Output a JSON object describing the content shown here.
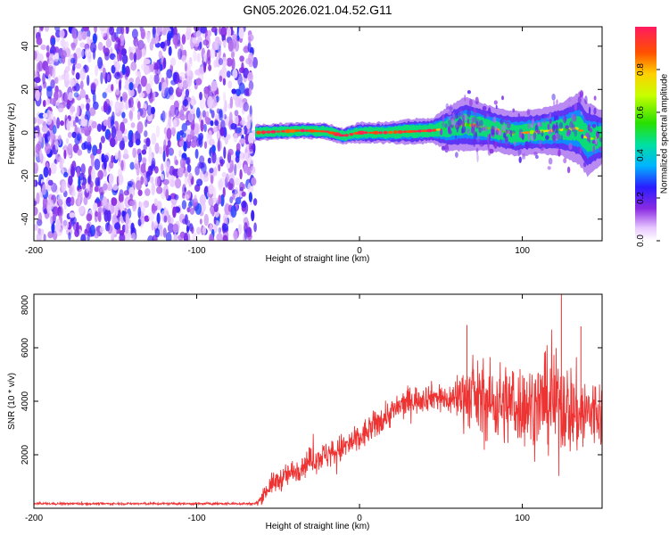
{
  "figure_title": "GN05.2026.021.04.52.G11",
  "chart_data": [
    {
      "type": "heatmap",
      "title": "GN05.2026.021.04.52.G11",
      "xlabel": "Height of straight line (km)",
      "ylabel": "Frequency (Hz)",
      "xlim": [
        -200,
        149
      ],
      "ylim": [
        -50,
        49
      ],
      "xticks": [
        "-200",
        "-100",
        "0",
        "100"
      ],
      "xtick_values": [
        -200,
        -100,
        0,
        100
      ],
      "yticks": [
        "-40",
        "-20",
        "0",
        "20",
        "40"
      ],
      "ytick_values": [
        -40,
        -20,
        0,
        20,
        40
      ],
      "noise_region_x": [
        -200,
        -64
      ],
      "ridge": {
        "x": [
          -64,
          -50,
          -35,
          -20,
          -10,
          0,
          15,
          30,
          45,
          55,
          65,
          80,
          95,
          110,
          125,
          135,
          140,
          149
        ],
        "frequency": [
          0,
          0.5,
          1,
          0.5,
          -1.5,
          0,
          0,
          0.5,
          1,
          2,
          4,
          2,
          -0.5,
          0.5,
          1.5,
          2,
          -3,
          -2
        ],
        "spread": [
          1,
          1,
          1,
          1,
          1,
          1.5,
          1.5,
          2,
          2,
          4,
          5,
          4,
          4,
          4,
          5,
          7,
          7,
          5
        ]
      },
      "colorbar": {
        "label": "Normalized spectral amplitude",
        "range": [
          0,
          1
        ],
        "ticks": [
          "0.0",
          "0.2",
          "0.4",
          "0.6",
          "0.8"
        ],
        "tick_values": [
          0,
          0.2,
          0.4,
          0.6,
          0.8
        ]
      }
    },
    {
      "type": "line",
      "xlabel": "Height of straight line (km)",
      "ylabel": "SNR (10 * v/v)",
      "xlim": [
        -200,
        149
      ],
      "ylim": [
        0,
        8000
      ],
      "xticks": [
        "-200",
        "-100",
        "0",
        "100"
      ],
      "xtick_values": [
        -200,
        -100,
        0,
        100
      ],
      "yticks": [
        "2000",
        "4000",
        "6000",
        "8000"
      ],
      "ytick_values": [
        2000,
        4000,
        6000,
        8000
      ],
      "line_color": "#ee3333",
      "series": [
        {
          "name": "SNR",
          "x": [
            -200,
            -64,
            -62,
            -55,
            -45,
            -30,
            -15,
            0,
            15,
            30,
            45,
            55,
            65,
            75,
            90,
            105,
            120,
            135,
            149
          ],
          "y": [
            170,
            170,
            250,
            850,
            1200,
            1800,
            2100,
            2600,
            3400,
            4000,
            4200,
            4050,
            4300,
            4000,
            3900,
            3850,
            4000,
            3500,
            3600
          ],
          "noise": [
            40,
            40,
            150,
            350,
            400,
            450,
            500,
            500,
            500,
            500,
            450,
            500,
            1100,
            1300,
            1400,
            1400,
            1700,
            1500,
            1200
          ]
        }
      ],
      "peak_annotations": {
        "x": [
          66,
          124,
          136
        ],
        "y": [
          6850,
          8000,
          6800
        ]
      }
    }
  ]
}
